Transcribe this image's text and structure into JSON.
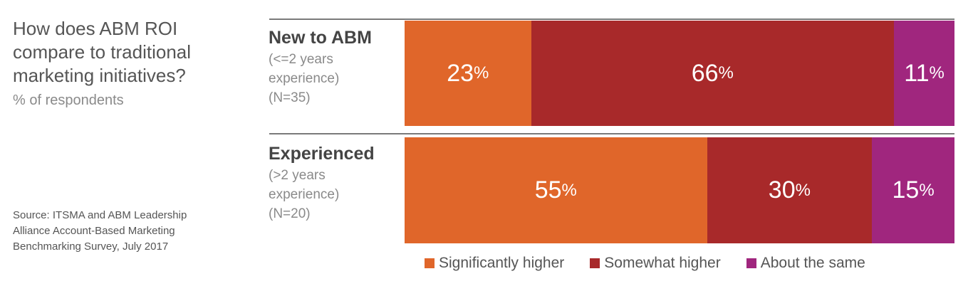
{
  "title": "How does ABM ROI compare to traditional marketing initiatives?",
  "subtitle": "% of respondents",
  "source": "Source: ITSMA and ABM Leadership Alliance Account-Based Marketing Benchmarking Survey, July 2017",
  "colors": {
    "significantly_higher": "#e0662a",
    "somewhat_higher": "#a8292a",
    "about_the_same": "#a0267e"
  },
  "rows": [
    {
      "name": "New to ABM",
      "detail1": "(<=2 years",
      "detail2": "experience)",
      "n": "(N=35)"
    },
    {
      "name": "Experienced",
      "detail1": "(>2 years",
      "detail2": "experience)",
      "n": "(N=20)"
    }
  ],
  "legend": [
    "Significantly higher",
    "Somewhat higher",
    "About the same"
  ],
  "chart_data": {
    "type": "bar",
    "orientation": "horizontal",
    "stacked": true,
    "percent": true,
    "categories": [
      "New to ABM",
      "Experienced"
    ],
    "series": [
      {
        "name": "Significantly higher",
        "values": [
          23,
          55
        ]
      },
      {
        "name": "Somewhat higher",
        "values": [
          66,
          30
        ]
      },
      {
        "name": "About the same",
        "values": [
          11,
          15
        ]
      }
    ],
    "xlim": [
      0,
      100
    ],
    "value_suffix": "%",
    "legend_position": "bottom",
    "grid": false
  }
}
